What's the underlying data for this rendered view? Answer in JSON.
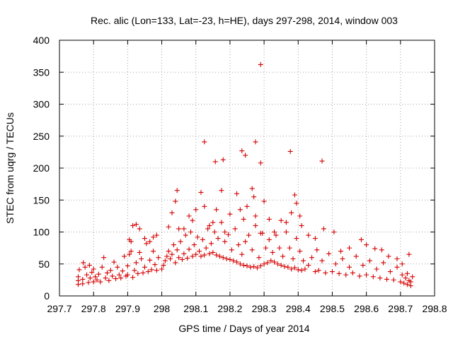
{
  "chart_data": {
    "type": "scatter",
    "title": "Rec. alic (Lon=133, Lat=-23, h=HE), days 297-298, 2014, window 003",
    "xlabel": "GPS time / Days of year 2014",
    "ylabel": "STEC from uqrg / TECUs",
    "xlim": [
      297.7,
      298.8
    ],
    "ylim": [
      0,
      400
    ],
    "xticks": [
      "297.7",
      "297.8",
      "297.9",
      "298",
      "298.1",
      "298.2",
      "298.3",
      "298.4",
      "298.5",
      "298.6",
      "298.7",
      "298.8"
    ],
    "yticks": [
      "0",
      "50",
      "100",
      "150",
      "200",
      "250",
      "300",
      "350",
      "400"
    ],
    "grid": true,
    "marker": "plus",
    "series_color": "#d40000",
    "series": [
      {
        "name": "STEC",
        "points": [
          [
            297.755,
            18
          ],
          [
            297.755,
            24
          ],
          [
            297.755,
            30
          ],
          [
            297.758,
            41
          ],
          [
            297.768,
            19
          ],
          [
            297.768,
            26
          ],
          [
            297.77,
            52
          ],
          [
            297.775,
            45
          ],
          [
            297.78,
            33
          ],
          [
            297.785,
            21
          ],
          [
            297.788,
            48
          ],
          [
            297.79,
            28
          ],
          [
            297.795,
            37
          ],
          [
            297.8,
            22
          ],
          [
            297.8,
            42
          ],
          [
            297.805,
            30
          ],
          [
            297.81,
            25
          ],
          [
            297.815,
            34
          ],
          [
            297.82,
            22
          ],
          [
            297.825,
            45
          ],
          [
            297.83,
            60
          ],
          [
            297.835,
            28
          ],
          [
            297.84,
            36
          ],
          [
            297.845,
            24
          ],
          [
            297.85,
            40
          ],
          [
            297.855,
            31
          ],
          [
            297.86,
            53
          ],
          [
            297.865,
            27
          ],
          [
            297.87,
            45
          ],
          [
            297.875,
            33
          ],
          [
            297.88,
            28
          ],
          [
            297.885,
            39
          ],
          [
            297.89,
            62
          ],
          [
            297.895,
            31
          ],
          [
            297.9,
            47
          ],
          [
            297.9,
            33
          ],
          [
            297.905,
            65
          ],
          [
            297.91,
            70
          ],
          [
            297.915,
            29
          ],
          [
            297.92,
            40
          ],
          [
            297.925,
            52
          ],
          [
            297.93,
            35
          ],
          [
            297.935,
            68
          ],
          [
            297.94,
            58
          ],
          [
            297.945,
            36
          ],
          [
            297.95,
            45
          ],
          [
            297.955,
            82
          ],
          [
            297.96,
            38
          ],
          [
            297.965,
            56
          ],
          [
            297.97,
            41
          ],
          [
            297.975,
            70
          ],
          [
            297.98,
            49
          ],
          [
            297.985,
            40
          ],
          [
            297.99,
            60
          ],
          [
            297.905,
            88
          ],
          [
            297.91,
            85
          ],
          [
            297.915,
            110
          ],
          [
            297.925,
            112
          ],
          [
            297.935,
            105
          ],
          [
            297.95,
            90
          ],
          [
            297.965,
            85
          ],
          [
            297.975,
            92
          ],
          [
            297.985,
            95
          ],
          [
            298.0,
            42
          ],
          [
            298.005,
            48
          ],
          [
            298.01,
            55
          ],
          [
            298.015,
            62
          ],
          [
            298.02,
            70
          ],
          [
            298.025,
            58
          ],
          [
            298.03,
            65
          ],
          [
            298.035,
            80
          ],
          [
            298.04,
            52
          ],
          [
            298.045,
            72
          ],
          [
            298.05,
            60
          ],
          [
            298.055,
            85
          ],
          [
            298.06,
            57
          ],
          [
            298.065,
            66
          ],
          [
            298.07,
            95
          ],
          [
            298.075,
            59
          ],
          [
            298.08,
            73
          ],
          [
            298.085,
            100
          ],
          [
            298.09,
            62
          ],
          [
            298.095,
            80
          ],
          [
            298.1,
            65
          ],
          [
            298.105,
            92
          ],
          [
            298.11,
            70
          ],
          [
            298.115,
            62
          ],
          [
            298.12,
            88
          ],
          [
            298.125,
            64
          ],
          [
            298.13,
            75
          ],
          [
            298.135,
            105
          ],
          [
            298.14,
            66
          ],
          [
            298.145,
            82
          ],
          [
            298.15,
            68
          ],
          [
            298.155,
            100
          ],
          [
            298.16,
            64
          ],
          [
            298.165,
            90
          ],
          [
            298.17,
            62
          ],
          [
            298.175,
            115
          ],
          [
            298.18,
            60
          ],
          [
            298.185,
            85
          ],
          [
            298.19,
            58
          ],
          [
            298.195,
            96
          ],
          [
            298.2,
            57
          ],
          [
            298.205,
            72
          ],
          [
            298.21,
            55
          ],
          [
            298.215,
            105
          ],
          [
            298.22,
            53
          ],
          [
            298.225,
            80
          ],
          [
            298.23,
            50
          ],
          [
            298.235,
            65
          ],
          [
            298.24,
            48
          ],
          [
            298.245,
            85
          ],
          [
            298.25,
            47
          ],
          [
            298.255,
            95
          ],
          [
            298.26,
            45
          ],
          [
            298.265,
            72
          ],
          [
            298.27,
            46
          ],
          [
            298.275,
            110
          ],
          [
            298.28,
            44
          ],
          [
            298.285,
            60
          ],
          [
            298.29,
            47
          ],
          [
            298.295,
            98
          ],
          [
            298.3,
            50
          ],
          [
            298.305,
            75
          ],
          [
            298.31,
            52
          ],
          [
            298.315,
            88
          ],
          [
            298.32,
            55
          ],
          [
            298.325,
            68
          ],
          [
            298.33,
            53
          ],
          [
            298.335,
            95
          ],
          [
            298.34,
            50
          ],
          [
            298.345,
            75
          ],
          [
            298.35,
            48
          ],
          [
            298.355,
            62
          ],
          [
            298.36,
            46
          ],
          [
            298.365,
            100
          ],
          [
            298.37,
            45
          ],
          [
            298.375,
            75
          ],
          [
            298.38,
            42
          ],
          [
            298.385,
            58
          ],
          [
            298.39,
            44
          ],
          [
            298.395,
            90
          ],
          [
            298.4,
            41
          ],
          [
            298.405,
            70
          ],
          [
            298.41,
            40
          ],
          [
            298.415,
            55
          ],
          [
            298.42,
            42
          ],
          [
            298.43,
            48
          ],
          [
            298.44,
            60
          ],
          [
            298.45,
            38
          ],
          [
            298.455,
            72
          ],
          [
            298.46,
            40
          ],
          [
            298.47,
            55
          ],
          [
            298.48,
            36
          ],
          [
            298.49,
            66
          ],
          [
            298.5,
            38
          ],
          [
            298.51,
            50
          ],
          [
            298.52,
            35
          ],
          [
            298.53,
            58
          ],
          [
            298.54,
            33
          ],
          [
            298.55,
            45
          ],
          [
            298.56,
            36
          ],
          [
            298.57,
            62
          ],
          [
            298.58,
            31
          ],
          [
            298.59,
            48
          ],
          [
            298.6,
            33
          ],
          [
            298.61,
            55
          ],
          [
            298.62,
            30
          ],
          [
            298.63,
            42
          ],
          [
            298.64,
            28
          ],
          [
            298.65,
            52
          ],
          [
            298.66,
            26
          ],
          [
            298.67,
            38
          ],
          [
            298.68,
            25
          ],
          [
            298.69,
            45
          ],
          [
            298.7,
            22
          ],
          [
            298.705,
            33
          ],
          [
            298.71,
            20
          ],
          [
            298.715,
            28
          ],
          [
            298.72,
            18
          ],
          [
            298.725,
            24
          ],
          [
            298.73,
            16
          ],
          [
            298.735,
            30
          ],
          [
            298.73,
            22
          ],
          [
            298.72,
            35
          ],
          [
            298.705,
            50
          ],
          [
            298.725,
            65
          ],
          [
            298.69,
            58
          ],
          [
            298.665,
            62
          ],
          [
            298.645,
            72
          ],
          [
            298.625,
            74
          ],
          [
            298.6,
            80
          ],
          [
            298.585,
            88
          ],
          [
            298.55,
            75
          ],
          [
            298.525,
            70
          ],
          [
            298.505,
            100
          ],
          [
            298.475,
            105
          ],
          [
            298.45,
            90
          ],
          [
            298.43,
            95
          ],
          [
            298.41,
            110
          ],
          [
            298.405,
            125
          ],
          [
            298.395,
            145
          ],
          [
            298.39,
            158
          ],
          [
            298.38,
            130
          ],
          [
            298.365,
            115
          ],
          [
            298.35,
            118
          ],
          [
            298.33,
            100
          ],
          [
            298.315,
            120
          ],
          [
            298.3,
            148
          ],
          [
            298.29,
            98
          ],
          [
            298.275,
            125
          ],
          [
            298.27,
            155
          ],
          [
            298.265,
            168
          ],
          [
            298.25,
            140
          ],
          [
            298.24,
            120
          ],
          [
            298.23,
            135
          ],
          [
            298.22,
            160
          ],
          [
            298.2,
            128
          ],
          [
            298.185,
            100
          ],
          [
            298.175,
            165
          ],
          [
            298.16,
            135
          ],
          [
            298.15,
            115
          ],
          [
            298.14,
            110
          ],
          [
            298.125,
            140
          ],
          [
            298.115,
            162
          ],
          [
            298.1,
            135
          ],
          [
            298.09,
            118
          ],
          [
            298.08,
            125
          ],
          [
            298.065,
            105
          ],
          [
            298.05,
            105
          ],
          [
            298.04,
            148
          ],
          [
            298.03,
            130
          ],
          [
            298.02,
            108
          ],
          [
            298.045,
            165
          ],
          [
            298.125,
            241
          ],
          [
            298.157,
            210
          ],
          [
            298.18,
            213
          ],
          [
            298.235,
            227
          ],
          [
            298.245,
            220
          ],
          [
            298.275,
            241
          ],
          [
            298.29,
            208
          ],
          [
            298.377,
            226
          ],
          [
            298.47,
            211
          ],
          [
            298.29,
            362
          ]
        ]
      }
    ]
  }
}
